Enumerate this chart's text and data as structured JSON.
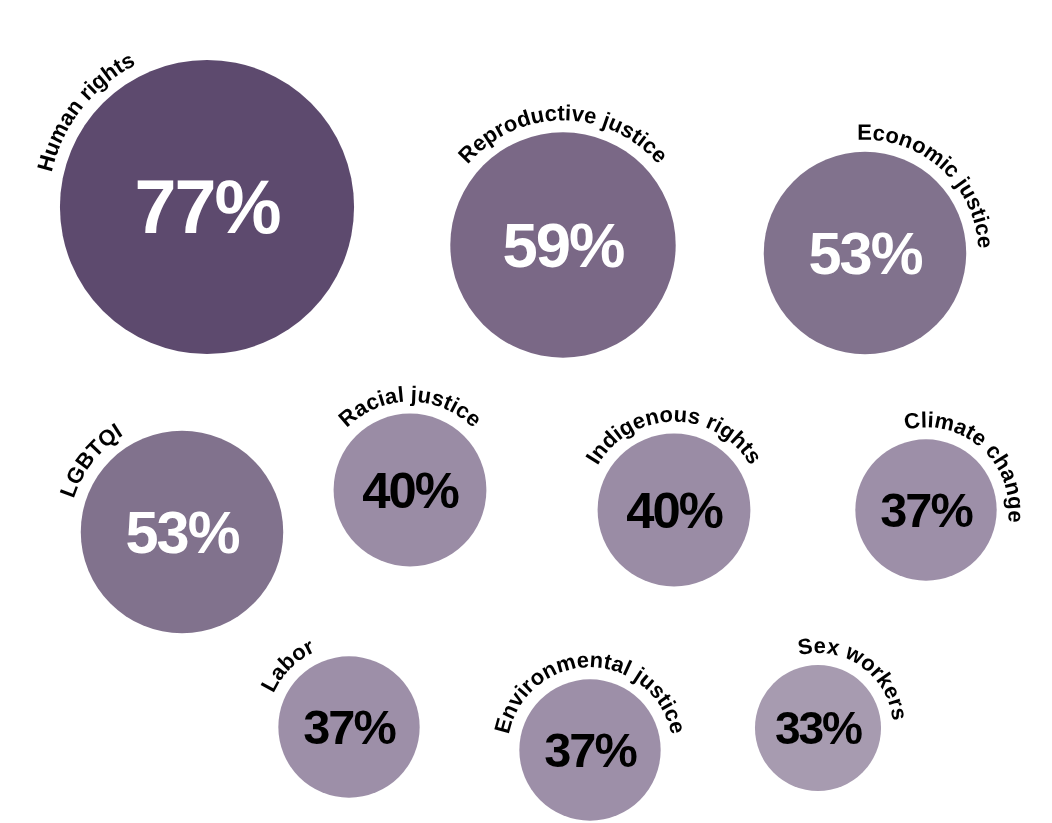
{
  "chart_data": {
    "type": "other",
    "categories": [
      "Human rights",
      "Reproductive justice",
      "Economic justice",
      "LGBTQI",
      "Racial justice",
      "Indigenous rights",
      "Climate change",
      "Labor",
      "Environmental justice",
      "Sex workers"
    ],
    "values": [
      77,
      59,
      53,
      53,
      40,
      40,
      37,
      37,
      37,
      33
    ],
    "value_labels": [
      "77%",
      "59%",
      "53%",
      "53%",
      "40%",
      "40%",
      "37%",
      "37%",
      "37%",
      "33%"
    ],
    "colors": [
      "#5d4a6e",
      "#7a6886",
      "#81728d",
      "#81728d",
      "#9a8ca5",
      "#9a8ca5",
      "#9d8fa8",
      "#9d8fa8",
      "#9d8fa8",
      "#a79bb0"
    ]
  }
}
